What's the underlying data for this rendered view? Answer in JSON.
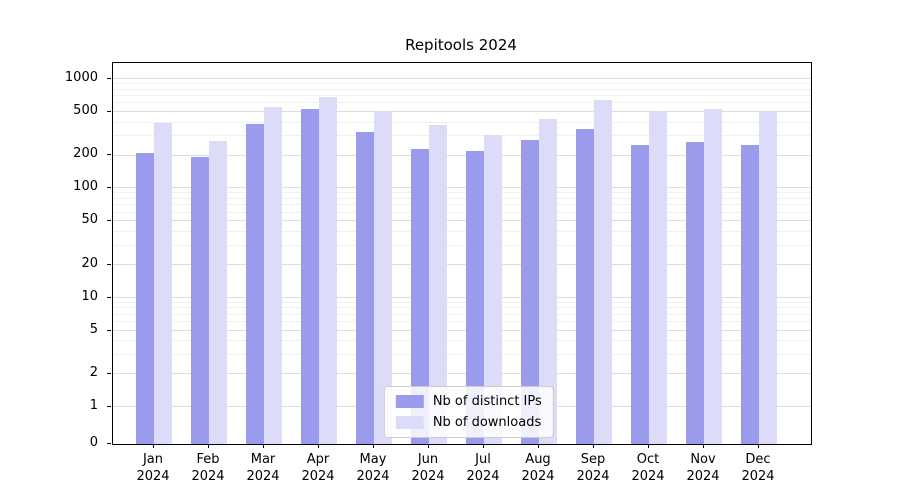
{
  "chart_data": {
    "type": "bar",
    "title": "Repitools 2024",
    "categories": [
      "Jan",
      "Feb",
      "Mar",
      "Apr",
      "May",
      "Jun",
      "Jul",
      "Aug",
      "Sep",
      "Oct",
      "Nov",
      "Dec"
    ],
    "year": "2024",
    "series": [
      {
        "name": "Nb of distinct IPs",
        "color": "#9b9bee",
        "values": [
          210,
          195,
          390,
          530,
          330,
          230,
          220,
          280,
          350,
          250,
          265,
          250
        ]
      },
      {
        "name": "Nb of downloads",
        "color": "#dcdcf8",
        "values": [
          400,
          270,
          550,
          690,
          510,
          380,
          310,
          430,
          640,
          510,
          530,
          505
        ]
      }
    ],
    "y_ticks": [
      0,
      1,
      2,
      5,
      10,
      20,
      50,
      100,
      200,
      500,
      1000
    ],
    "y_scale": "log",
    "ylim": [
      0,
      1400
    ],
    "grid": true,
    "legend_position": "lower center",
    "colors": {
      "major_grid": "#dddddd",
      "minor_grid": "#f0f0f0",
      "axis": "#000000"
    }
  }
}
